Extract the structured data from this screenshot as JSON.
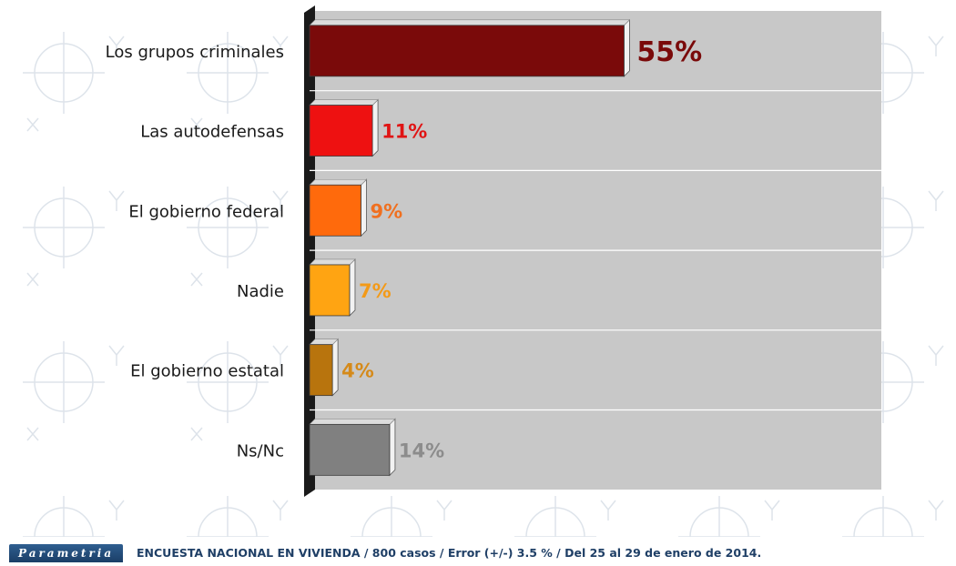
{
  "chart_data": {
    "type": "bar",
    "orientation": "horizontal",
    "categories": [
      "Los grupos criminales",
      "Las autodefensas",
      "El gobierno federal",
      "Nadie",
      "El gobierno estatal",
      "Ns/Nc"
    ],
    "values": [
      55,
      11,
      9,
      7,
      4,
      14
    ],
    "data_labels": [
      "55%",
      "11%",
      "9%",
      "7%",
      "4%",
      "14%"
    ],
    "colors": [
      "#7a0a0a",
      "#ee1111",
      "#ff6a0c",
      "#ffa412",
      "#b8740d",
      "#808080"
    ],
    "label_colors": [
      "#7a0a0a",
      "#e01515",
      "#f07020",
      "#f39a18",
      "#d58a1a",
      "#8c8c8c"
    ],
    "xlim": [
      0,
      100
    ],
    "grid": true,
    "legend": "none",
    "background_color": "#c8c8c8"
  },
  "footer": {
    "brand": "Parametria",
    "note": "ENCUESTA NACIONAL EN VIVIENDA / 800 casos / Error (+/-) 3.5 % / Del 25 al 29 de enero de 2014."
  }
}
